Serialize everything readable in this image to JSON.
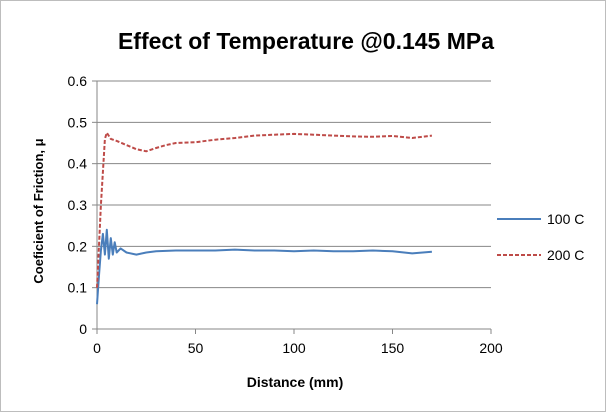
{
  "chart_data": {
    "type": "line",
    "title": "Effect of Temperature @0.145 MPa",
    "xlabel": "Distance (mm)",
    "ylabel": "Coeficient of Friction, μ",
    "xlim": [
      0,
      200
    ],
    "ylim": [
      0,
      0.6
    ],
    "x_ticks": [
      0,
      50,
      100,
      150,
      200
    ],
    "y_ticks": [
      0,
      0.1,
      0.2,
      0.3,
      0.4,
      0.5,
      0.6
    ],
    "grid": "horizontal",
    "legend_position": "right",
    "series": [
      {
        "name": "100 C",
        "color": "#4a7ebb",
        "style": "solid",
        "x": [
          0,
          1,
          2,
          3,
          4,
          5,
          6,
          7,
          8,
          9,
          10,
          12,
          15,
          20,
          25,
          30,
          40,
          50,
          60,
          70,
          80,
          90,
          100,
          110,
          120,
          130,
          140,
          150,
          160,
          170
        ],
        "y": [
          0.06,
          0.13,
          0.19,
          0.23,
          0.18,
          0.24,
          0.17,
          0.22,
          0.18,
          0.21,
          0.185,
          0.195,
          0.185,
          0.18,
          0.185,
          0.188,
          0.19,
          0.19,
          0.19,
          0.192,
          0.19,
          0.19,
          0.188,
          0.19,
          0.188,
          0.188,
          0.19,
          0.188,
          0.183,
          0.187
        ]
      },
      {
        "name": "200 C",
        "color": "#be4b48",
        "style": "dashed",
        "x": [
          0,
          2,
          4,
          5,
          7,
          10,
          15,
          20,
          25,
          30,
          35,
          40,
          50,
          60,
          70,
          80,
          90,
          100,
          110,
          120,
          130,
          140,
          150,
          160,
          170
        ],
        "y": [
          0.1,
          0.3,
          0.46,
          0.475,
          0.46,
          0.455,
          0.445,
          0.435,
          0.43,
          0.438,
          0.445,
          0.45,
          0.452,
          0.458,
          0.462,
          0.468,
          0.47,
          0.472,
          0.47,
          0.468,
          0.466,
          0.465,
          0.467,
          0.462,
          0.468
        ]
      }
    ]
  }
}
